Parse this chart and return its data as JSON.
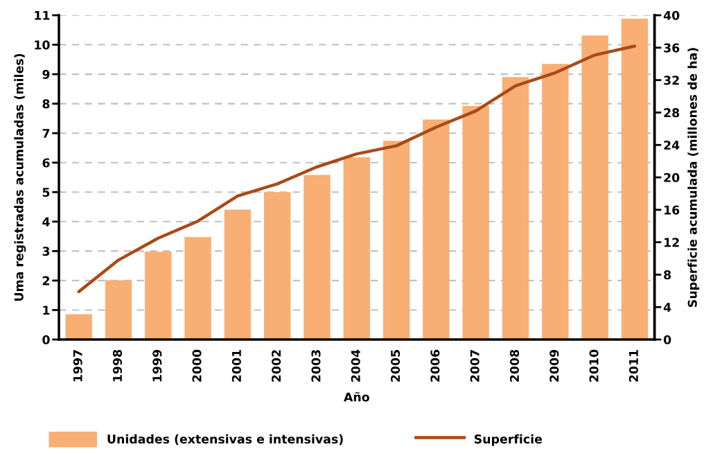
{
  "chart_data": {
    "type": "bar",
    "xlabel": "Año",
    "ylabel": "Uma registradas acumuladas (miles)",
    "y2label": "Superficie acumulada (millones de ha)",
    "categories": [
      "1997",
      "1998",
      "1999",
      "2000",
      "2001",
      "2002",
      "2003",
      "2004",
      "2005",
      "2006",
      "2007",
      "2008",
      "2009",
      "2010",
      "2011"
    ],
    "series": [
      {
        "name": "Unidades (extensivas e intensivas)",
        "color": "#f9ae74",
        "values": [
          0.86,
          2.01,
          2.98,
          3.47,
          4.41,
          5.0,
          5.58,
          6.18,
          6.74,
          7.46,
          7.92,
          8.9,
          9.35,
          10.31,
          10.88
        ]
      },
      {
        "name": "Superficie",
        "type": "line",
        "axis": "y2",
        "color": "#aa4a17",
        "values": [
          5.9,
          9.8,
          12.5,
          14.6,
          17.7,
          19.2,
          21.3,
          22.9,
          23.9,
          26.2,
          28.2,
          31.3,
          32.9,
          35.1,
          36.2
        ]
      }
    ],
    "ylim": [
      0,
      11
    ],
    "yticks": [
      0,
      1,
      2,
      3,
      4,
      5,
      6,
      7,
      8,
      9,
      10,
      11
    ],
    "y2lim": [
      0,
      40
    ],
    "y2ticks": [
      0,
      4,
      8,
      12,
      16,
      20,
      24,
      28,
      32,
      36,
      40
    ],
    "grid": "y",
    "legend": "bottom",
    "line_style": "solid"
  }
}
